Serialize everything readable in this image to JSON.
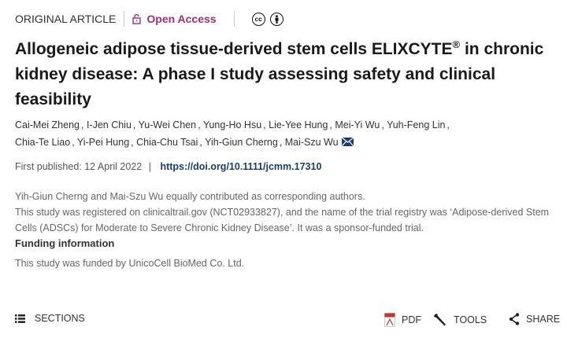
{
  "header": {
    "article_type": "ORIGINAL ARTICLE",
    "access": "Open Access",
    "accent": "#9e2f75",
    "license_cc": "cc"
  },
  "title": {
    "main": "Allogeneic adipose tissue-derived stem cells ELIXCYTE",
    "sup": "®",
    "rest": " in chronic kidney disease: A phase I study assessing safety and clinical feasibility"
  },
  "authors": [
    "Cai-Mei Zheng",
    "I-Jen Chiu",
    "Yu-Wei Chen",
    "Yung-Ho Hsu",
    "Lie-Yee Hung",
    "Mei-Yi Wu",
    "Yuh-Feng Lin",
    "Chia-Te Liao",
    "Yi-Pei Hung",
    "Chia-Chu Tsai",
    "Yih-Giun Cherng",
    "Mai-Szu Wu"
  ],
  "publication": {
    "label": "First published: 12 April 2022",
    "separator": "|",
    "doi": "https://doi.org/10.1111/jcmm.17310"
  },
  "notes": {
    "line1": "Yih-Giun Cherng and Mai-Szu Wu equally contributed as corresponding authors.",
    "line2": "This study was registered on clinicaltrail.gov (NCT02933827), and the name of the trial registry was ‘Adipose-derived Stem Cells (ADSCs) for Moderate to Severe Chronic Kidney Disease’. It was a sponsor-funded trial.",
    "funding_heading": "Funding information",
    "funding_text": "This study was funded by UnicoCell BioMed Co. Ltd."
  },
  "toolbar": {
    "sections": "SECTIONS",
    "pdf": "PDF",
    "tools": "TOOLS",
    "share": "SHARE"
  }
}
